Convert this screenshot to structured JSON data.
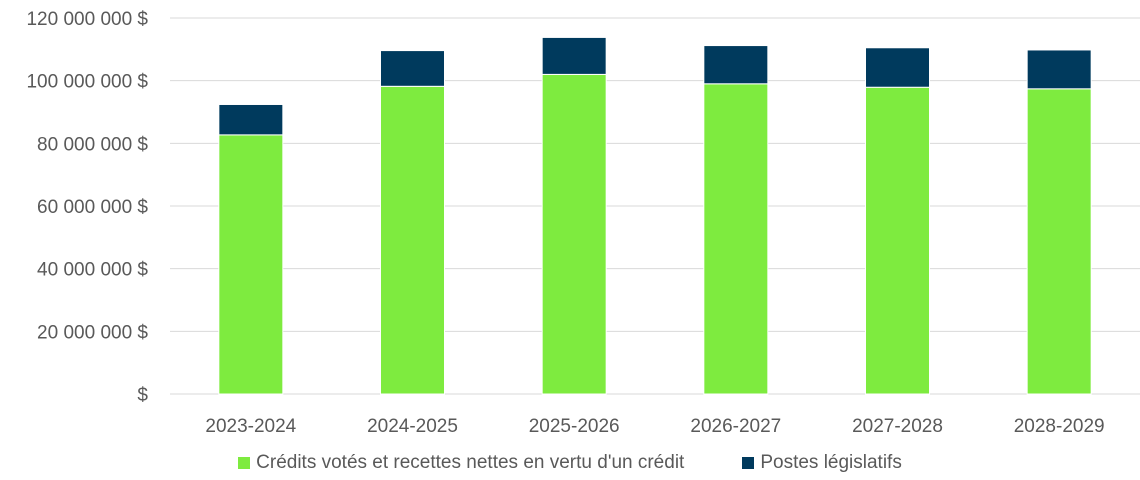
{
  "chart_data": {
    "type": "bar",
    "stacked": true,
    "categories": [
      "2023-2024",
      "2024-2025",
      "2025-2026",
      "2026-2027",
      "2027-2028",
      "2028-2029"
    ],
    "series": [
      {
        "name": "Crédits votés et recettes nettes en vertu d'un crédit",
        "color": "#7EEB3F",
        "values": [
          82700000,
          98200000,
          102000000,
          99000000,
          97900000,
          97400000
        ]
      },
      {
        "name": "Postes législatifs",
        "color": "#003A5D",
        "values": [
          9700000,
          11400000,
          11800000,
          12200000,
          12600000,
          12400000
        ]
      }
    ],
    "ylim": [
      0,
      120000000
    ],
    "yticks": [
      0,
      20000000,
      40000000,
      60000000,
      80000000,
      100000000,
      120000000
    ],
    "ytick_labels": [
      "$",
      "20 000 000 $",
      "40 000 000 $",
      "60 000 000 $",
      "80 000 000 $",
      "100 000 000 $",
      "120 000 000 $"
    ],
    "grid": true,
    "gridline_color": "#D9D9D9",
    "legend_position": "bottom"
  }
}
